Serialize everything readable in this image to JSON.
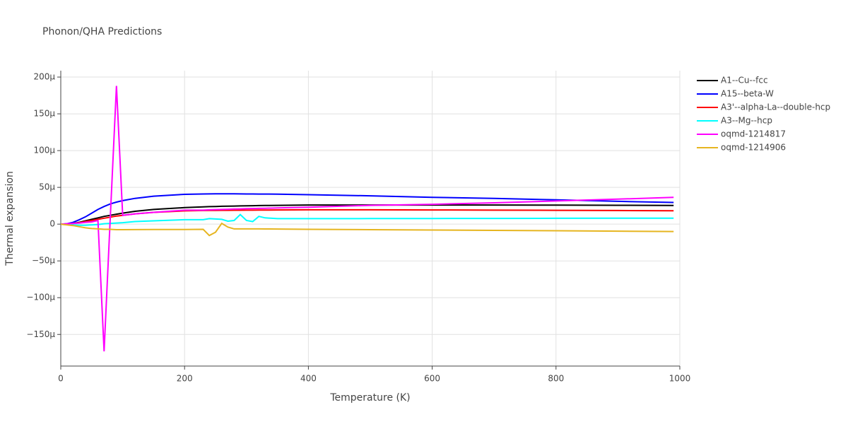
{
  "chart_data": {
    "type": "line",
    "title": "Phonon/QHA Predictions",
    "x_label": "Temperature (K)",
    "y_label": "Thermal expansion",
    "x": [
      0,
      10,
      20,
      30,
      40,
      50,
      60,
      70,
      80,
      90,
      100,
      120,
      150,
      200,
      230,
      240,
      250,
      260,
      270,
      280,
      290,
      300,
      310,
      320,
      330,
      350,
      400,
      500,
      600,
      700,
      800,
      900,
      990
    ],
    "series": [
      {
        "name": "A1--Cu--fcc",
        "color": "#000000",
        "values": [
          0,
          0.3,
          1,
          2.5,
          4.5,
          6.5,
          8.5,
          10.5,
          12,
          13.5,
          15,
          17.5,
          20,
          22.5,
          23.5,
          23.8,
          24,
          24.3,
          24.5,
          24.6,
          24.8,
          25,
          25.1,
          25.2,
          25.3,
          25.5,
          26,
          26,
          26,
          26,
          25.8,
          25.6,
          25.4
        ]
      },
      {
        "name": "A15--beta-W",
        "color": "#0000ff",
        "values": [
          0,
          0.5,
          2.5,
          6,
          10,
          15,
          20,
          24,
          27.5,
          30,
          32,
          35,
          38,
          40.5,
          41,
          41.1,
          41.2,
          41.3,
          41.3,
          41.2,
          41.1,
          41,
          41,
          40.9,
          40.9,
          40.8,
          40,
          38.5,
          36.5,
          35,
          33,
          31,
          29.5
        ]
      },
      {
        "name": "A3'--alpha-La--double-hcp",
        "color": "#ff0000",
        "values": [
          0,
          0.2,
          0.8,
          2,
          3.5,
          5,
          6.5,
          8,
          9.5,
          11,
          12,
          14,
          16,
          18,
          18.5,
          18.6,
          18.7,
          18.8,
          18.8,
          18.9,
          18.9,
          19,
          19,
          19.1,
          19.1,
          19.3,
          19.5,
          19.5,
          19.3,
          19,
          18.8,
          18.5,
          18.2
        ]
      },
      {
        "name": "A3--Mg--hcp",
        "color": "#00ffff",
        "values": [
          0,
          -0.5,
          -1,
          -1.5,
          -1.5,
          -1,
          -0.5,
          0.5,
          1,
          1.5,
          2,
          3.5,
          4.5,
          6,
          6,
          7.5,
          7,
          6.5,
          4,
          5,
          13,
          5,
          3.5,
          10.5,
          8.5,
          7.5,
          7.5,
          7.6,
          7.7,
          7.8,
          7.9,
          8,
          8
        ]
      },
      {
        "name": "oqmd-1214817",
        "color": "#ff00ff",
        "values": [
          0,
          0.5,
          1,
          1.5,
          2.5,
          3,
          5,
          -173,
          10,
          188,
          12,
          14,
          16,
          19,
          19,
          19.5,
          19.8,
          20,
          20.2,
          20.5,
          20.7,
          21,
          21.2,
          21.4,
          21.6,
          22,
          23,
          25.5,
          27,
          29,
          31.5,
          34,
          36.5
        ]
      },
      {
        "name": "oqmd-1214906",
        "color": "#e6b520",
        "values": [
          0,
          -1,
          -2,
          -3.5,
          -5,
          -6,
          -6.5,
          -7,
          -7,
          -7.5,
          -7.5,
          -7.4,
          -7.3,
          -7.2,
          -7,
          -15.5,
          -11,
          1,
          -4,
          -6.5,
          -6.5,
          -6.5,
          -6.5,
          -6.5,
          -6.6,
          -6.7,
          -7,
          -7.5,
          -8,
          -8.5,
          -9,
          -9.5,
          -10
        ]
      }
    ],
    "xlim": [
      0,
      1000
    ],
    "xticks": [
      0,
      200,
      400,
      600,
      800,
      1000
    ],
    "ylim": [
      -193,
      208.7
    ],
    "yticks": [
      {
        "value": -150,
        "label": "−150μ"
      },
      {
        "value": -100,
        "label": "−100μ"
      },
      {
        "value": -50,
        "label": "−50μ"
      },
      0,
      {
        "value": 50,
        "label": "50μ"
      },
      {
        "value": 100,
        "label": "100μ"
      },
      {
        "value": 150,
        "label": "150μ"
      },
      {
        "value": 200,
        "label": "200μ"
      }
    ],
    "grid": true,
    "legend": "right"
  }
}
